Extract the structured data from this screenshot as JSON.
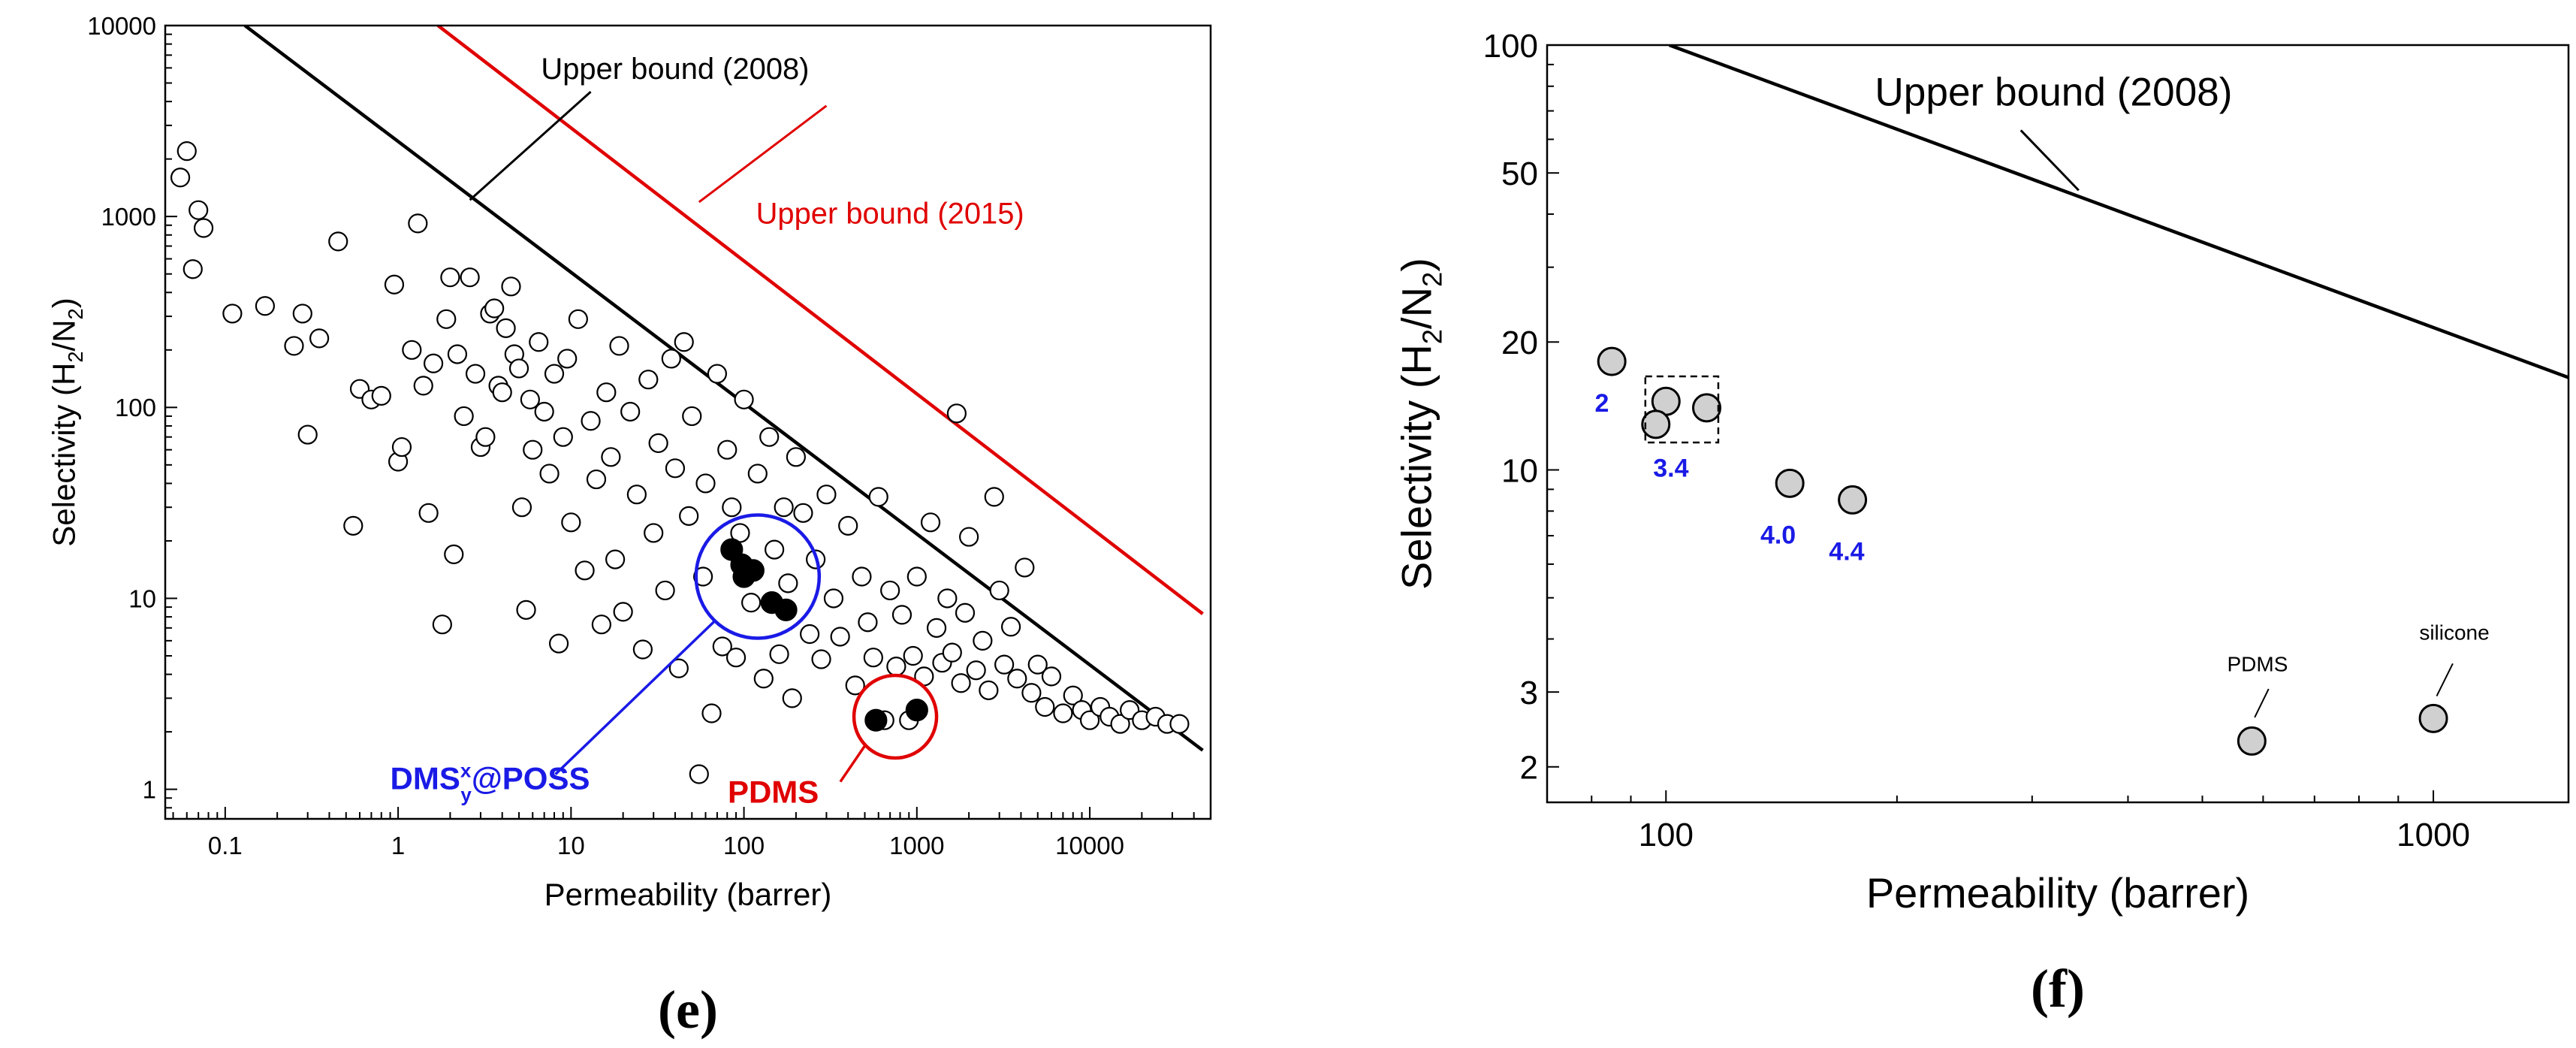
{
  "colors": {
    "bound_2008": "#000000",
    "bound_2015": "#e00000",
    "dms_circle": "#1a1ae6",
    "pdms_circle": "#e00000",
    "open_marker_fill": "#ffffff",
    "filled_marker": "#000000",
    "gray_marker": "#d0d0d0",
    "blue_label": "#1a1ae6"
  },
  "chart_data": [
    {
      "panel": "e",
      "panel_label": "(e)",
      "type": "scatter",
      "xscale": "log",
      "yscale": "log",
      "xlim": [
        0.045,
        50000
      ],
      "ylim": [
        0.7,
        10000
      ],
      "xlabel": "Permeability (barrer)",
      "ylabel_parts": [
        "Selectivity (H",
        "2",
        "/N",
        "2",
        ")"
      ],
      "x_ticks": [
        0.1,
        1,
        10,
        100,
        1000,
        10000
      ],
      "x_tick_labels": [
        "0.1",
        "1",
        "10",
        "100",
        "1000",
        "10000"
      ],
      "y_ticks": [
        1,
        10,
        100,
        1000,
        10000
      ],
      "y_tick_labels": [
        "1",
        "10",
        "100",
        "1000",
        "10000"
      ],
      "lines": [
        {
          "name": "Upper bound (2008)",
          "color_key": "bound_2008",
          "points": [
            [
              0.13,
              10000
            ],
            [
              45000,
              1.6
            ]
          ]
        },
        {
          "name": "Upper bound (2015)",
          "color_key": "bound_2015",
          "points": [
            [
              1.7,
              10000
            ],
            [
              45000,
              8.3
            ]
          ]
        }
      ],
      "annotations": [
        {
          "text": "Upper bound (2008)",
          "color_key": "bound_2008",
          "text_at": [
            40,
            6000
          ],
          "leader": [
            [
              2.6,
              1220
            ],
            [
              13,
              4500
            ]
          ],
          "bold": false
        },
        {
          "text": "Upper bound (2015)",
          "color_key": "bound_2015",
          "text_at": [
            700,
            1050
          ],
          "leader": [
            [
              55,
              1190
            ],
            [
              300,
              3800
            ]
          ],
          "bold": false
        }
      ],
      "circles": [
        {
          "name": "DMS group",
          "color_key": "dms_circle",
          "center": [
            120,
            13
          ]
        },
        {
          "name": "PDMS group",
          "color_key": "pdms_circle",
          "center": [
            750,
            2.4
          ]
        }
      ],
      "group_labels": [
        {
          "main": "DMS",
          "sup": "x",
          "sub": "y",
          "suffix": "@POSS",
          "color_key": "dms_circle",
          "at": [
            0.9,
            1.0
          ]
        },
        {
          "main": "PDMS",
          "color_key": "pdms_circle",
          "at": [
            40,
            0.85
          ]
        }
      ],
      "series": [
        {
          "name": "literature membranes",
          "marker": "open-circle",
          "points": [
            [
              0.055,
              1600
            ],
            [
              0.06,
              2200
            ],
            [
              0.065,
              530
            ],
            [
              0.07,
              1080
            ],
            [
              0.075,
              870
            ],
            [
              0.11,
              310
            ],
            [
              0.17,
              340
            ],
            [
              0.25,
              210
            ],
            [
              0.28,
              310
            ],
            [
              0.3,
              72
            ],
            [
              0.35,
              230
            ],
            [
              0.45,
              740
            ],
            [
              0.55,
              24
            ],
            [
              0.6,
              125
            ],
            [
              0.7,
              110
            ],
            [
              0.8,
              115
            ],
            [
              0.95,
              440
            ],
            [
              1.0,
              52
            ],
            [
              1.05,
              62
            ],
            [
              1.2,
              200
            ],
            [
              1.3,
              920
            ],
            [
              1.4,
              130
            ],
            [
              1.5,
              28
            ],
            [
              1.6,
              170
            ],
            [
              1.8,
              7.3
            ],
            [
              1.9,
              290
            ],
            [
              2.0,
              480
            ],
            [
              2.1,
              17
            ],
            [
              2.2,
              190
            ],
            [
              2.4,
              90
            ],
            [
              2.6,
              480
            ],
            [
              2.8,
              150
            ],
            [
              3.0,
              62
            ],
            [
              3.2,
              70
            ],
            [
              3.4,
              310
            ],
            [
              3.6,
              330
            ],
            [
              3.8,
              130
            ],
            [
              4.0,
              120
            ],
            [
              4.2,
              260
            ],
            [
              4.5,
              430
            ],
            [
              4.7,
              190
            ],
            [
              5.0,
              160
            ],
            [
              5.2,
              30
            ],
            [
              5.5,
              8.7
            ],
            [
              5.8,
              110
            ],
            [
              6.0,
              60
            ],
            [
              6.5,
              220
            ],
            [
              7.0,
              95
            ],
            [
              7.5,
              45
            ],
            [
              8.0,
              150
            ],
            [
              8.5,
              5.8
            ],
            [
              9.0,
              70
            ],
            [
              9.5,
              180
            ],
            [
              10,
              25
            ],
            [
              11,
              290
            ],
            [
              12,
              14
            ],
            [
              13,
              85
            ],
            [
              14,
              42
            ],
            [
              15,
              7.3
            ],
            [
              16,
              120
            ],
            [
              17,
              55
            ],
            [
              18,
              16
            ],
            [
              19,
              210
            ],
            [
              20,
              8.5
            ],
            [
              22,
              95
            ],
            [
              24,
              35
            ],
            [
              26,
              5.4
            ],
            [
              28,
              140
            ],
            [
              30,
              22
            ],
            [
              32,
              65
            ],
            [
              35,
              11
            ],
            [
              38,
              180
            ],
            [
              40,
              48
            ],
            [
              42,
              4.3
            ],
            [
              45,
              220
            ],
            [
              48,
              27
            ],
            [
              50,
              90
            ],
            [
              55,
              1.2
            ],
            [
              58,
              13
            ],
            [
              60,
              40
            ],
            [
              65,
              2.5
            ],
            [
              70,
              150
            ],
            [
              75,
              5.6
            ],
            [
              80,
              60
            ],
            [
              85,
              30
            ],
            [
              90,
              4.9
            ],
            [
              95,
              22
            ],
            [
              100,
              110
            ],
            [
              110,
              9.5
            ],
            [
              120,
              45
            ],
            [
              130,
              3.8
            ],
            [
              140,
              70
            ],
            [
              150,
              18
            ],
            [
              160,
              5.1
            ],
            [
              170,
              30
            ],
            [
              180,
              12
            ],
            [
              190,
              3.0
            ],
            [
              200,
              55
            ],
            [
              220,
              28
            ],
            [
              240,
              6.5
            ],
            [
              260,
              16
            ],
            [
              280,
              4.8
            ],
            [
              300,
              35
            ],
            [
              330,
              10
            ],
            [
              360,
              6.3
            ],
            [
              400,
              24
            ],
            [
              440,
              3.5
            ],
            [
              480,
              13
            ],
            [
              520,
              7.5
            ],
            [
              560,
              4.9
            ],
            [
              600,
              34
            ],
            [
              650,
              2.3
            ],
            [
              700,
              11
            ],
            [
              760,
              4.4
            ],
            [
              820,
              8.2
            ],
            [
              900,
              2.3
            ],
            [
              950,
              5.0
            ],
            [
              1000,
              13
            ],
            [
              1100,
              3.9
            ],
            [
              1200,
              25
            ],
            [
              1300,
              7.0
            ],
            [
              1400,
              4.6
            ],
            [
              1500,
              10
            ],
            [
              1600,
              5.2
            ],
            [
              1700,
              93
            ],
            [
              1800,
              3.6
            ],
            [
              1900,
              8.4
            ],
            [
              2000,
              21
            ],
            [
              2200,
              4.2
            ],
            [
              2400,
              6.0
            ],
            [
              2600,
              3.3
            ],
            [
              2800,
              34
            ],
            [
              3000,
              11
            ],
            [
              3200,
              4.5
            ],
            [
              3500,
              7.1
            ],
            [
              3800,
              3.8
            ],
            [
              4200,
              14.5
            ],
            [
              4600,
              3.2
            ],
            [
              5000,
              4.5
            ],
            [
              5500,
              2.7
            ],
            [
              6000,
              3.9
            ],
            [
              7000,
              2.5
            ],
            [
              8000,
              3.1
            ],
            [
              9000,
              2.6
            ],
            [
              10000,
              2.3
            ],
            [
              11500,
              2.7
            ],
            [
              13000,
              2.4
            ],
            [
              15000,
              2.2
            ],
            [
              17000,
              2.6
            ],
            [
              20000,
              2.3
            ],
            [
              24000,
              2.4
            ],
            [
              28000,
              2.2
            ],
            [
              33000,
              2.2
            ]
          ]
        },
        {
          "name": "DMS@POSS",
          "marker": "filled-circle",
          "points": [
            [
              85,
              18
            ],
            [
              97,
              15
            ],
            [
              100,
              13
            ],
            [
              113,
              14
            ],
            [
              145,
              9.5
            ],
            [
              175,
              8.7
            ]
          ]
        },
        {
          "name": "PDMS",
          "marker": "filled-circle",
          "points": [
            [
              580,
              2.3
            ],
            [
              1000,
              2.6
            ]
          ]
        }
      ]
    },
    {
      "panel": "f",
      "panel_label": "(f)",
      "type": "scatter",
      "xscale": "log",
      "yscale": "log",
      "xlim": [
        70,
        1500
      ],
      "ylim": [
        1.65,
        100
      ],
      "xlabel": "Permeability (barrer)",
      "ylabel_parts": [
        "Selectivity (H",
        "2",
        "/N",
        "2",
        ")"
      ],
      "x_ticks": [
        100,
        1000
      ],
      "x_tick_labels": [
        "100",
        "1000"
      ],
      "y_ticks": [
        2,
        3,
        10,
        20,
        50,
        100
      ],
      "y_tick_labels": [
        "2",
        "3",
        "10",
        "20",
        "50",
        "100"
      ],
      "lines": [
        {
          "name": "Upper bound (2008)",
          "color_key": "bound_2008",
          "points": [
            [
              101,
              100
            ],
            [
              1500,
              16.5
            ]
          ]
        }
      ],
      "annotations": [
        {
          "text": "Upper bound (2008)",
          "color_key": "bound_2008",
          "text_at": [
            320,
            78
          ],
          "leader": [
            [
              345,
              45.5
            ],
            [
              290,
              63
            ]
          ],
          "bold": false
        }
      ],
      "selection_box": {
        "x": [
          94,
          117
        ],
        "y": [
          11.6,
          16.6
        ]
      },
      "series": [
        {
          "name": "DMS@POSS and reference membranes",
          "marker": "gray-circle",
          "points": [
            [
              85,
              18.0
            ],
            [
              100,
              14.5
            ],
            [
              97,
              12.8
            ],
            [
              113,
              14.0
            ],
            [
              145,
              9.3
            ],
            [
              175,
              8.5
            ],
            [
              580,
              2.3
            ],
            [
              1000,
              2.6
            ]
          ]
        }
      ],
      "point_labels": [
        {
          "text": "2",
          "at": [
            82.5,
            14.5
          ],
          "color_key": "blue_label",
          "bold": true
        },
        {
          "text": "3.4",
          "at": [
            101.5,
            10.2
          ],
          "color_key": "blue_label",
          "bold": true
        },
        {
          "text": "4.0",
          "at": [
            140,
            7.1
          ],
          "color_key": "blue_label",
          "bold": true
        },
        {
          "text": "4.4",
          "at": [
            172,
            6.5
          ],
          "color_key": "blue_label",
          "bold": true
        },
        {
          "text": "PDMS",
          "at": [
            590,
            3.5
          ],
          "color_key": "bound_2008",
          "bold": false
        },
        {
          "text": "silicone",
          "at": [
            1065,
            4.15
          ],
          "color_key": "bound_2008",
          "bold": false
        }
      ],
      "point_leaders": [
        {
          "from": [
            585,
            2.45
          ],
          "to": [
            610,
            3.05
          ]
        },
        {
          "from": [
            1010,
            2.75
          ],
          "to": [
            1060,
            3.5
          ]
        }
      ]
    }
  ]
}
